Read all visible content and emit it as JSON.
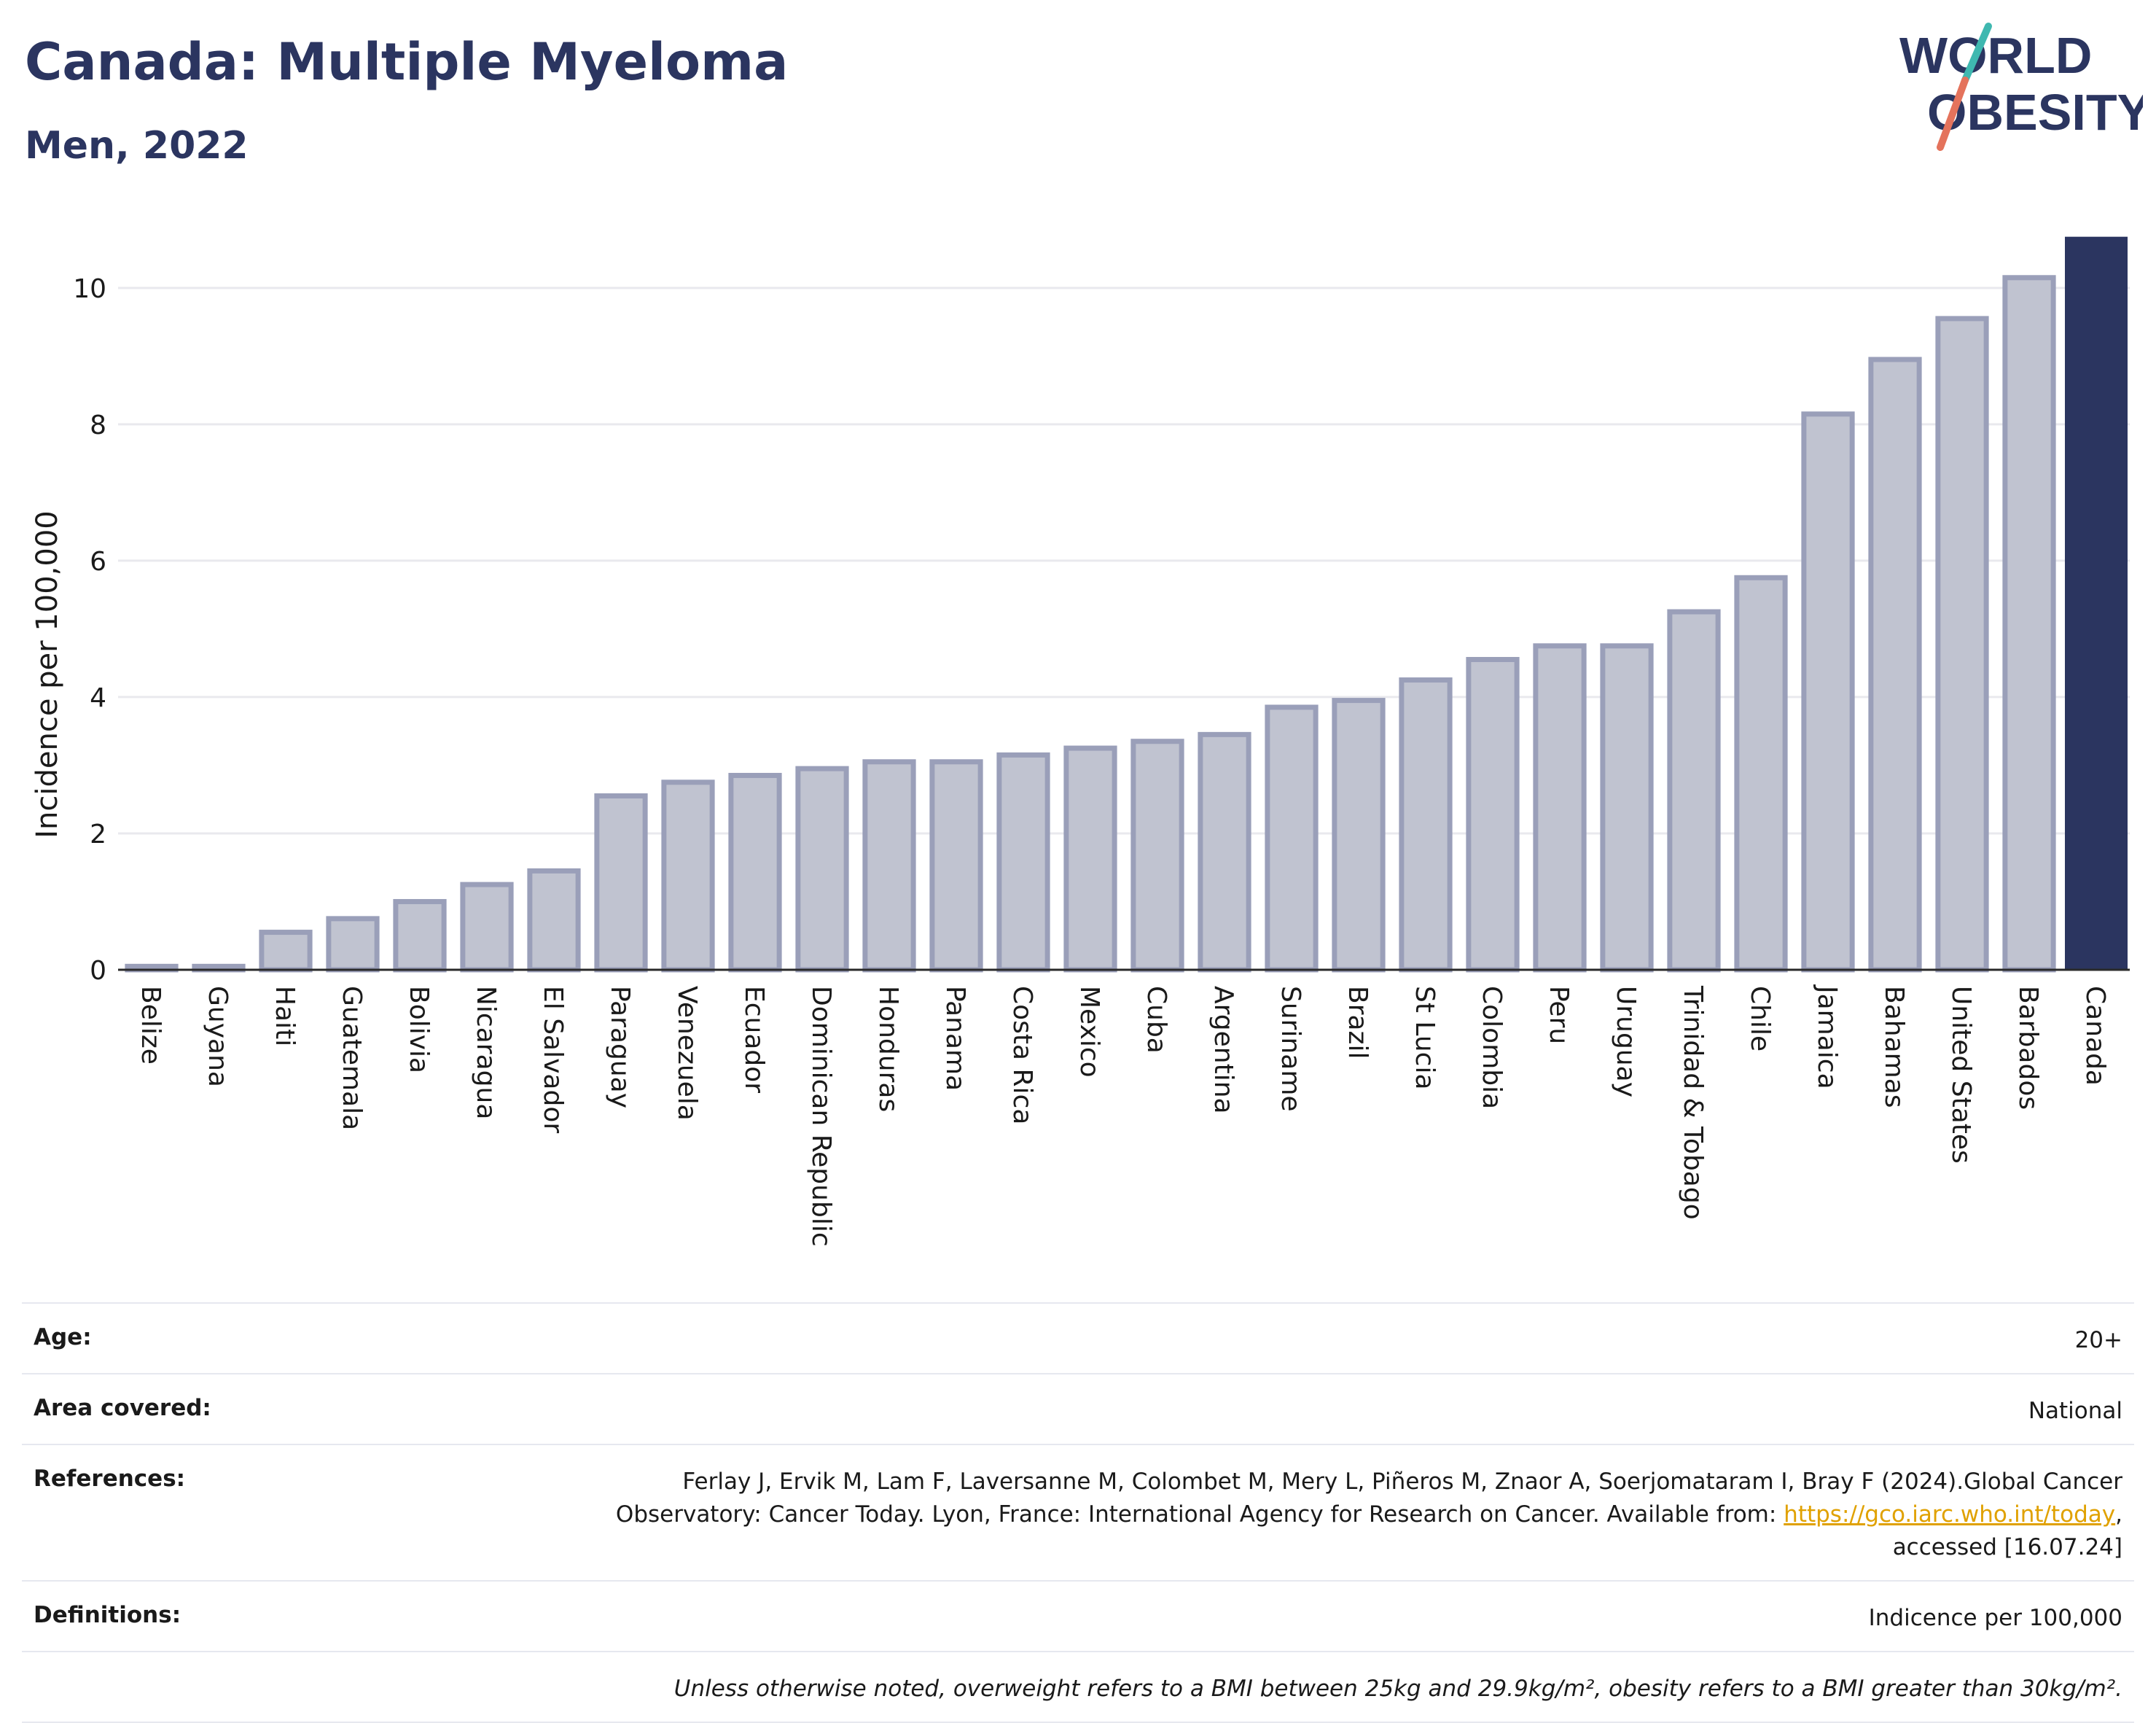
{
  "header": {
    "title": "Canada: Multiple Myeloma",
    "subtitle": "Men, 2022"
  },
  "logo": {
    "line1": "WORLD",
    "line2": "OBESITY"
  },
  "colors": {
    "highlight_bar": "#2b3560",
    "other_bar_fill": "#c0c3d0",
    "other_bar_stroke": "#9a9fb9",
    "gridline": "#e9e9ee",
    "logo_navy": "#2b3560",
    "logo_teal": "#3fb8b0",
    "logo_coral": "#e4735c"
  },
  "chart_data": {
    "type": "bar",
    "title": "Canada: Multiple Myeloma",
    "subtitle": "Men, 2022",
    "xlabel": "",
    "ylabel": "Incidence per 100,000",
    "ylim": [
      0,
      10.8
    ],
    "yticks": [
      0,
      2,
      4,
      6,
      8,
      10
    ],
    "grid": true,
    "highlight": "Canada",
    "categories": [
      "Belize",
      "Guyana",
      "Haiti",
      "Guatemala",
      "Bolivia",
      "Nicaragua",
      "El Salvador",
      "Paraguay",
      "Venezuela",
      "Ecuador",
      "Dominican Republic",
      "Honduras",
      "Panama",
      "Costa Rica",
      "Mexico",
      "Cuba",
      "Argentina",
      "Suriname",
      "Brazil",
      "St Lucia",
      "Colombia",
      "Peru",
      "Uruguay",
      "Trinidad & Tobago",
      "Chile",
      "Jamaica",
      "Bahamas",
      "United States",
      "Barbados",
      "Canada"
    ],
    "values": [
      0.05,
      0.05,
      0.55,
      0.75,
      1.0,
      1.25,
      1.45,
      2.55,
      2.75,
      2.85,
      2.95,
      3.05,
      3.05,
      3.15,
      3.25,
      3.35,
      3.45,
      3.85,
      3.95,
      4.25,
      4.55,
      4.75,
      4.75,
      5.25,
      5.75,
      8.15,
      8.95,
      9.55,
      10.15,
      10.75
    ]
  },
  "info": {
    "age_label": "Age:",
    "age_value": "20+",
    "area_label": "Area covered:",
    "area_value": "National",
    "references_label": "References:",
    "references_line1": "Ferlay J, Ervik M, Lam F, Laversanne M, Colombet M, Mery L, Piñeros M, Znaor A, Soerjomataram I, Bray F (2024).Global Cancer",
    "references_line2": "Observatory: Cancer Today. Lyon, France: International Agency for Research on Cancer. Available from: ",
    "references_link": "https://gco.iarc.who.int/today",
    "references_line2_end": ",",
    "references_line3": "accessed [16.07.24]",
    "definitions_label": "Definitions:",
    "definitions_value": "Indicence per 100,000",
    "note": "Unless otherwise noted, overweight refers to a BMI between 25kg and 29.9kg/m², obesity refers to a BMI greater than 30kg/m²."
  }
}
